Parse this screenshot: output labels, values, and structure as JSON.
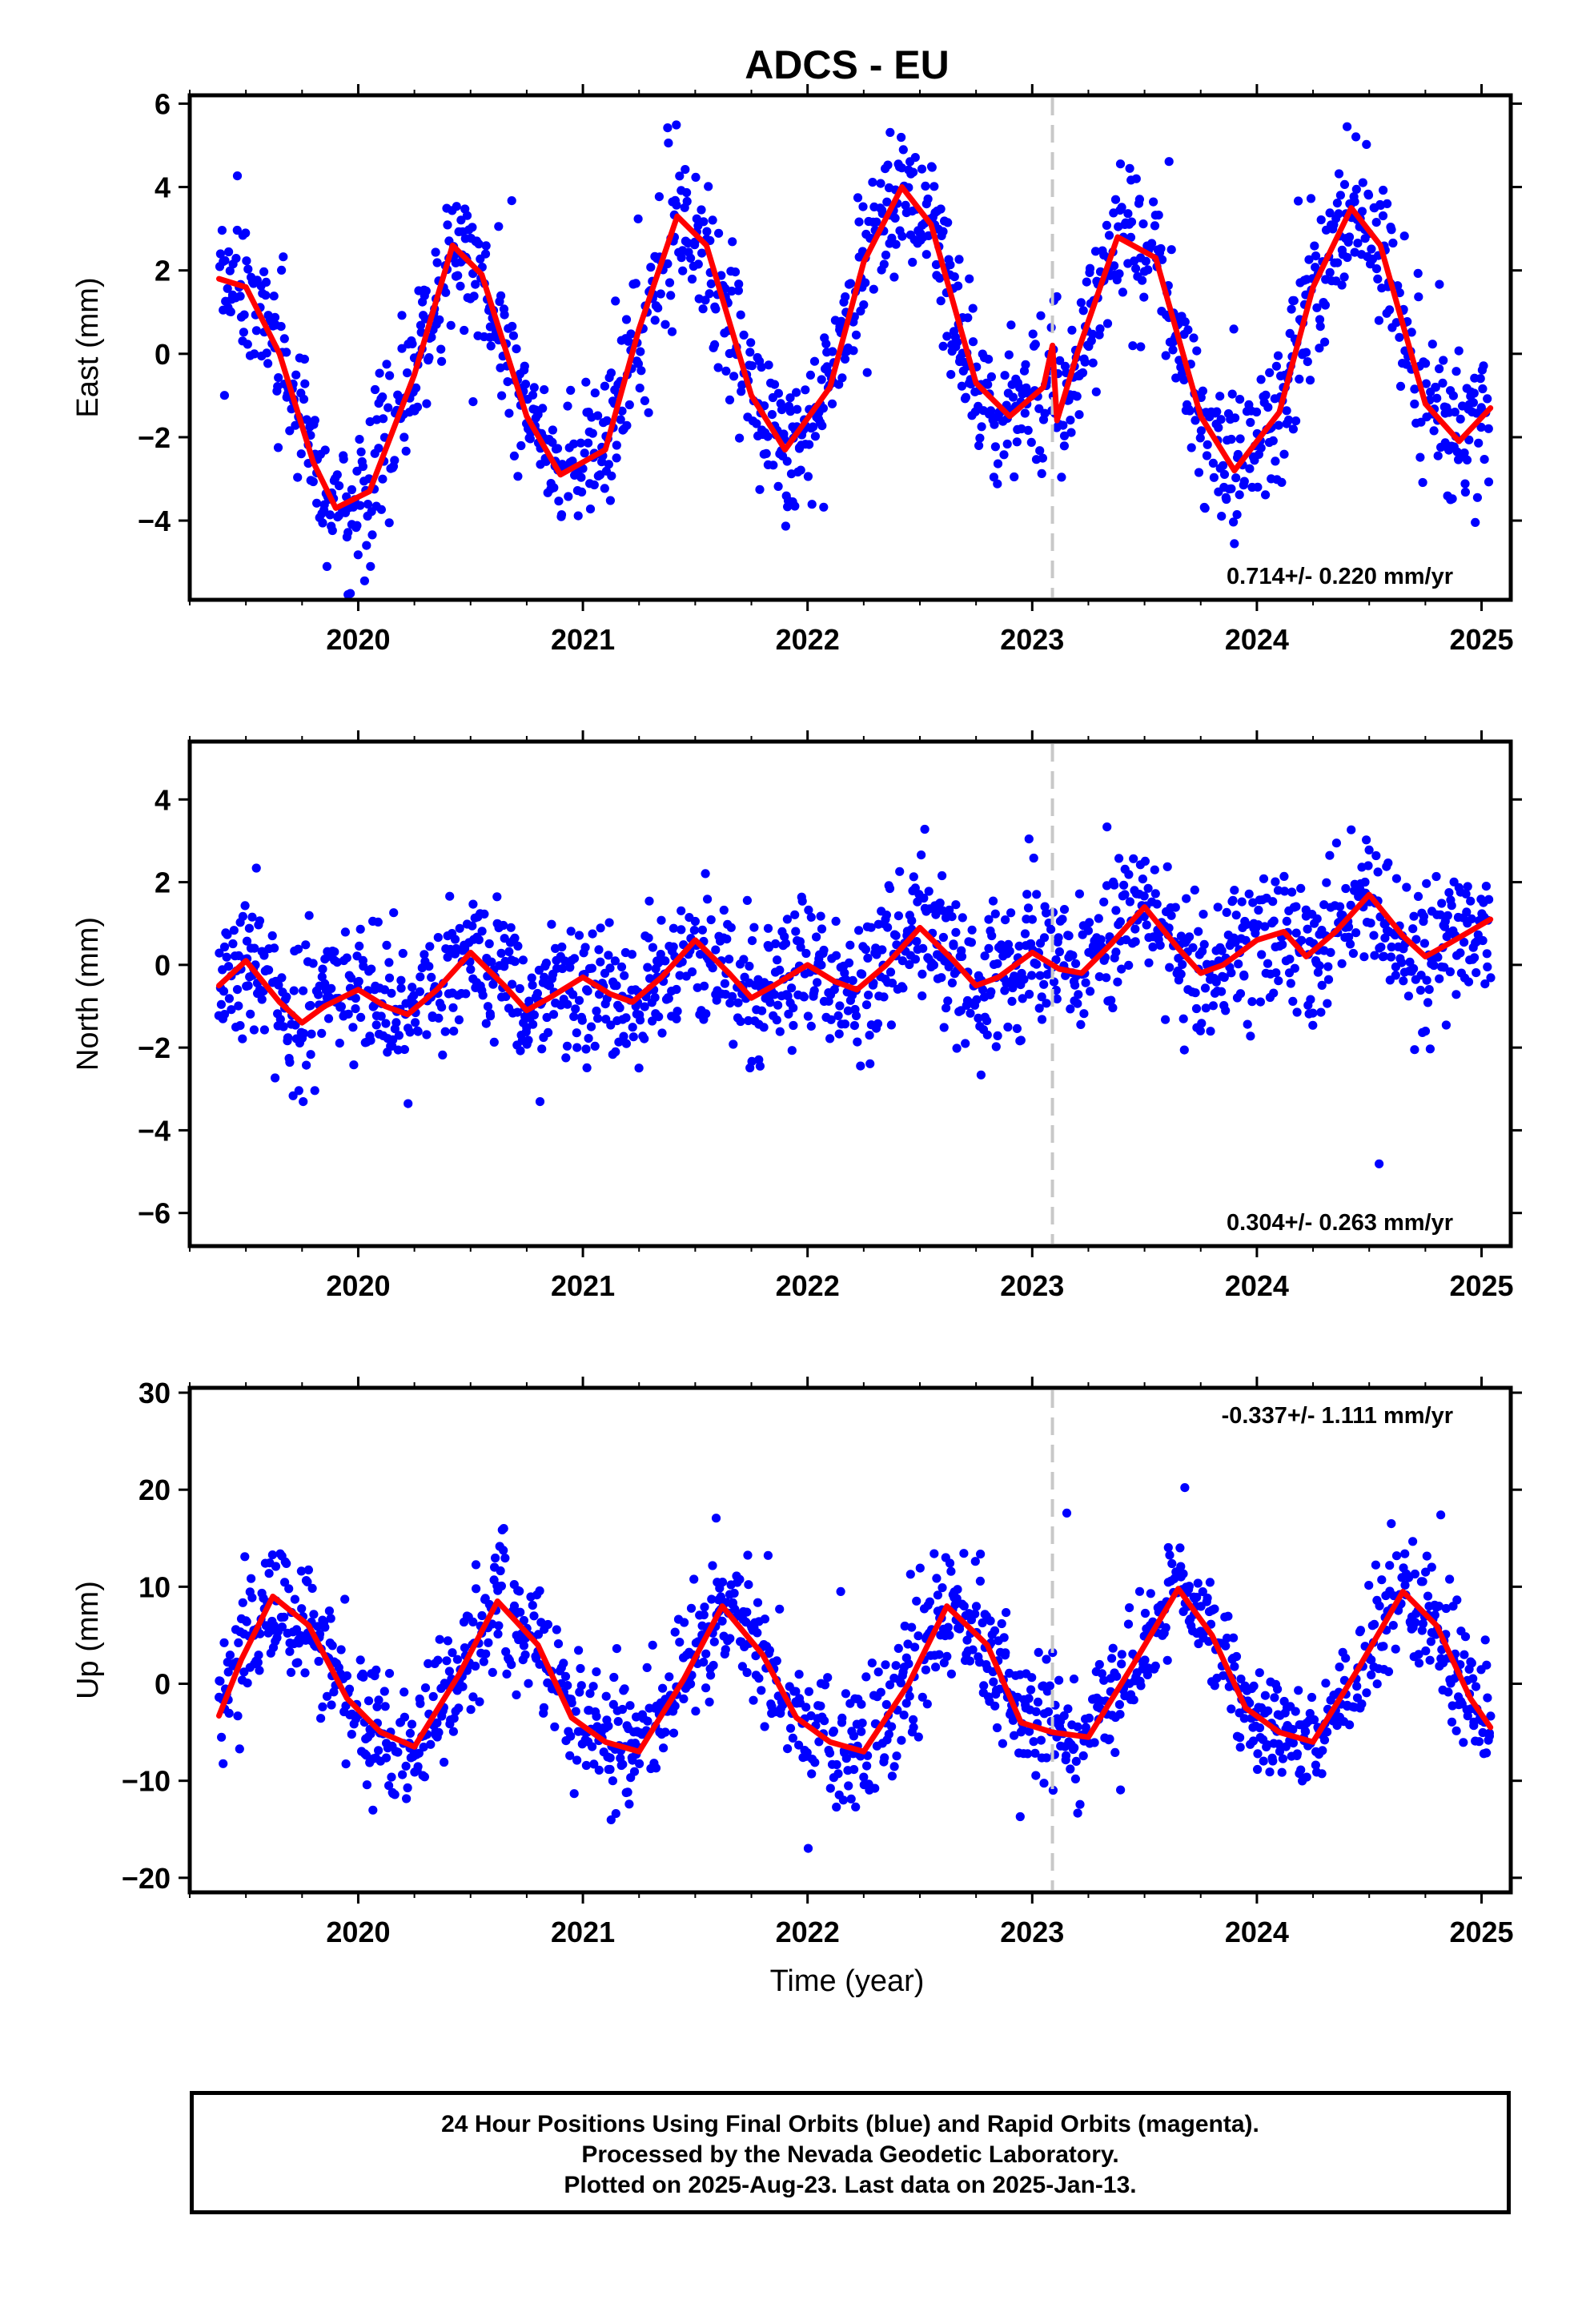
{
  "title": "ADCS - EU",
  "xlabel": "Time (year)",
  "colors": {
    "points": "#0000ff",
    "fit": "#ff0000",
    "break_line": "#c8c8c8",
    "frame": "#000000"
  },
  "footer": {
    "line1": "24 Hour Positions Using Final Orbits (blue) and Rapid Orbits (magenta).",
    "line2": "Processed by the Nevada Geodetic Laboratory.",
    "line3": "Plotted on 2025-Aug-23. Last data on 2025-Jan-13."
  },
  "chart_data": [
    {
      "type": "scatter",
      "component": "East",
      "ylabel": "East (mm)",
      "xlim": [
        2019.25,
        2025.13
      ],
      "ylim": [
        -5.9,
        6.2
      ],
      "xticks": [
        2020,
        2021,
        2022,
        2023,
        2024,
        2025
      ],
      "yticks": [
        -4,
        -2,
        0,
        2,
        4,
        6
      ],
      "rate_label": "0.714+/- 0.220 mm/yr",
      "rate_position": "bottom-right",
      "equipment_change": 2023.09,
      "time_span": [
        2019.38,
        2025.04
      ],
      "fit": {
        "x": [
          2019.38,
          2019.5,
          2019.65,
          2019.8,
          2019.9,
          2020.05,
          2020.25,
          2020.42,
          2020.55,
          2020.75,
          2020.9,
          2021.1,
          2021.25,
          2021.42,
          2021.55,
          2021.75,
          2021.9,
          2022.1,
          2022.25,
          2022.42,
          2022.55,
          2022.75,
          2022.9,
          2023.05,
          2023.09,
          2023.11,
          2023.2,
          2023.38,
          2023.55,
          2023.75,
          2023.9,
          2024.1,
          2024.25,
          2024.42,
          2024.55,
          2024.75,
          2024.9,
          2025.04
        ],
        "y": [
          1.8,
          1.6,
          0.0,
          -2.6,
          -3.7,
          -3.3,
          -0.5,
          2.6,
          1.9,
          -1.5,
          -2.9,
          -2.3,
          0.6,
          3.3,
          2.6,
          -1.0,
          -2.3,
          -0.8,
          2.2,
          4.0,
          3.1,
          -0.7,
          -1.5,
          -0.8,
          0.2,
          -1.6,
          0.0,
          2.8,
          2.3,
          -1.5,
          -2.8,
          -1.4,
          1.6,
          3.5,
          2.6,
          -1.2,
          -2.1,
          -1.3
        ]
      }
    },
    {
      "type": "scatter",
      "component": "North",
      "ylabel": "North (mm)",
      "xlim": [
        2019.25,
        2025.13
      ],
      "ylim": [
        -6.8,
        5.4
      ],
      "xticks": [
        2020,
        2021,
        2022,
        2023,
        2024,
        2025
      ],
      "yticks": [
        -6,
        -4,
        -2,
        0,
        2,
        4
      ],
      "rate_label": "0.304+/- 0.263 mm/yr",
      "rate_position": "bottom-right",
      "equipment_change": 2023.09,
      "time_span": [
        2019.38,
        2025.04
      ],
      "fit": {
        "x": [
          2019.38,
          2019.5,
          2019.65,
          2019.75,
          2019.85,
          2020.0,
          2020.12,
          2020.22,
          2020.35,
          2020.5,
          2020.65,
          2020.75,
          2020.85,
          2021.0,
          2021.12,
          2021.22,
          2021.35,
          2021.5,
          2021.65,
          2021.75,
          2021.85,
          2022.0,
          2022.12,
          2022.22,
          2022.35,
          2022.5,
          2022.65,
          2022.75,
          2022.85,
          2023.0,
          2023.12,
          2023.22,
          2023.35,
          2023.5,
          2023.65,
          2023.75,
          2023.85,
          2024.0,
          2024.12,
          2024.22,
          2024.35,
          2024.5,
          2024.65,
          2024.75,
          2024.85,
          2025.04
        ],
        "y": [
          -0.5,
          0.1,
          -0.9,
          -1.4,
          -1.0,
          -0.6,
          -1.0,
          -1.2,
          -0.6,
          0.3,
          -0.5,
          -1.1,
          -0.8,
          -0.3,
          -0.7,
          -0.9,
          -0.3,
          0.6,
          -0.2,
          -0.8,
          -0.5,
          0.0,
          -0.4,
          -0.6,
          0.0,
          0.9,
          0.1,
          -0.5,
          -0.3,
          0.3,
          -0.1,
          -0.2,
          0.5,
          1.4,
          0.4,
          -0.2,
          0.0,
          0.6,
          0.8,
          0.2,
          0.8,
          1.7,
          0.7,
          0.2,
          0.5,
          1.1
        ]
      }
    },
    {
      "type": "scatter",
      "component": "Up",
      "ylabel": "Up (mm)",
      "xlim": [
        2019.25,
        2025.13
      ],
      "ylim": [
        -21.5,
        30.5
      ],
      "xticks": [
        2020,
        2021,
        2022,
        2023,
        2024,
        2025
      ],
      "yticks": [
        -20,
        -10,
        0,
        10,
        20,
        30
      ],
      "rate_label": "-0.337+/- 1.111 mm/yr",
      "rate_position": "top-right",
      "equipment_change": 2023.09,
      "time_span": [
        2019.38,
        2025.04
      ],
      "fit": {
        "x": [
          2019.38,
          2019.48,
          2019.62,
          2019.78,
          2019.95,
          2020.1,
          2020.25,
          2020.45,
          2020.62,
          2020.8,
          2020.95,
          2021.1,
          2021.25,
          2021.45,
          2021.62,
          2021.8,
          2021.95,
          2022.1,
          2022.25,
          2022.45,
          2022.62,
          2022.8,
          2022.95,
          2023.09,
          2023.25,
          2023.45,
          2023.65,
          2023.8,
          2023.95,
          2024.1,
          2024.25,
          2024.45,
          2024.65,
          2024.8,
          2024.95,
          2025.04
        ],
        "y": [
          -3.3,
          2.5,
          9.0,
          6.0,
          -1.5,
          -5.0,
          -6.5,
          1.0,
          8.5,
          4.0,
          -3.5,
          -6.0,
          -7.0,
          0.5,
          8.0,
          3.0,
          -3.5,
          -6.0,
          -7.0,
          0.0,
          8.0,
          4.0,
          -4.0,
          -5.0,
          -5.5,
          2.0,
          9.8,
          5.0,
          -2.5,
          -5.0,
          -6.0,
          1.5,
          9.5,
          6.0,
          -1.5,
          -4.5
        ]
      }
    }
  ]
}
